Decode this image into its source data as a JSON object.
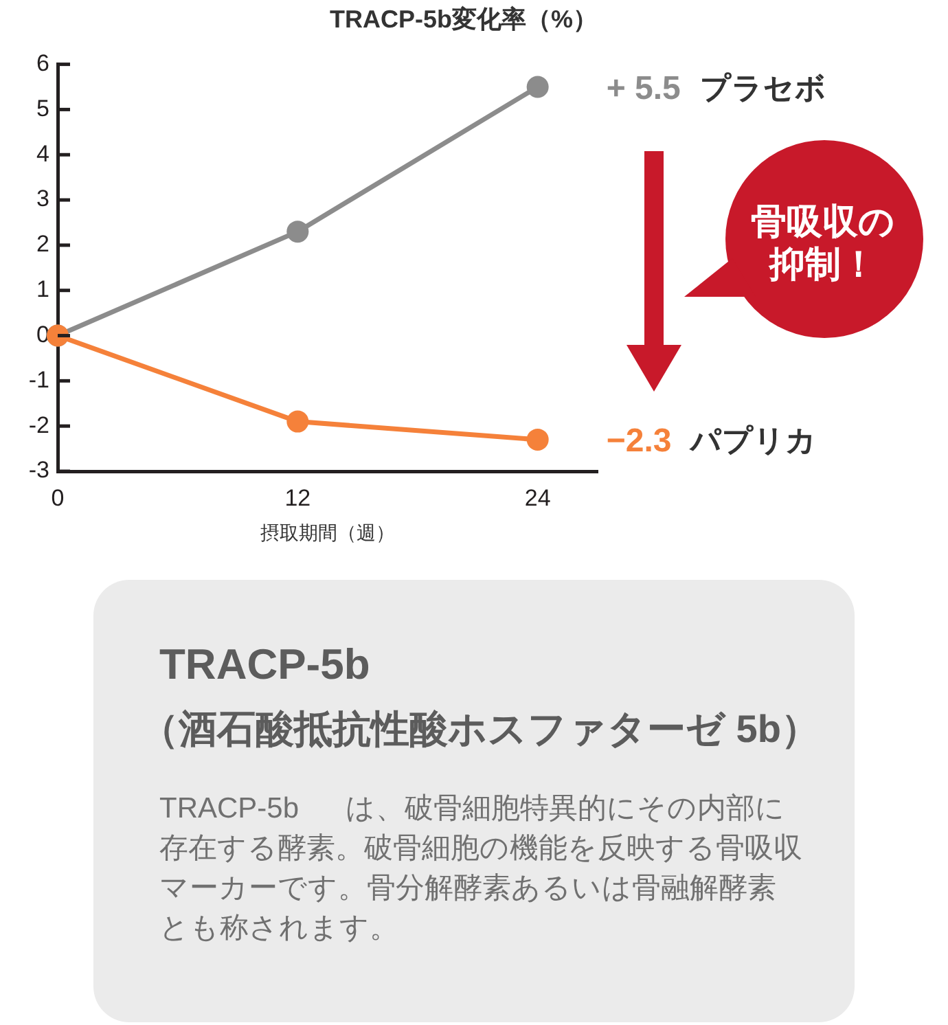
{
  "chart_data": [
    {
      "type": "line",
      "title": "TRACP-5b変化率（%）",
      "xlabel": "摂取期間（週）",
      "x": [
        0,
        12,
        24
      ],
      "series": [
        {
          "name": "プラセボ",
          "color": "#8c8c8c",
          "values": [
            0,
            2.3,
            5.5
          ],
          "value_labels": [
            null,
            null,
            "+ 5.5"
          ]
        },
        {
          "name": "パプリカ",
          "color": "#f5813a",
          "values": [
            0,
            -1.9,
            -2.3
          ],
          "value_labels": [
            null,
            null,
            "−2.3"
          ]
        }
      ],
      "xlim": [
        0,
        27
      ],
      "xticks": [
        0,
        12,
        24
      ],
      "ylim": [
        -3,
        6
      ],
      "yticks": [
        -3,
        -2,
        -1,
        0,
        1,
        2,
        3,
        4,
        5,
        6
      ],
      "grid": false,
      "legend": false,
      "marker": "circle",
      "line_style": "solid",
      "annotations": [
        "骨吸収の抑制！"
      ]
    },
    {
      "type": "other",
      "title": "TRACP-5b",
      "subtitle": "（酒石酸抵抗性酸ホスファターゼ 5b）",
      "annotations": [
        "TRACP-5b は、破骨細胞特異的にその内部に存在する酵素。破骨細胞の機能を反映する骨吸収マーカーです。骨分解酵素あるいは骨融解酵素とも称されます。"
      ]
    }
  ]
}
